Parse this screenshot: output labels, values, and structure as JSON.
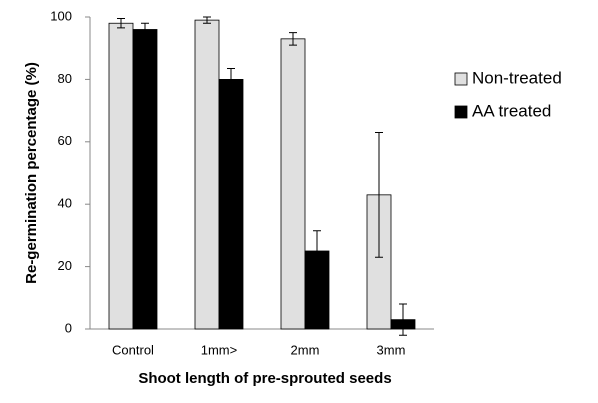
{
  "chart_data": {
    "type": "bar",
    "x_label": "Shoot length of pre-sprouted seeds",
    "y_label": "Re-germination percentage (%)",
    "categories": [
      "Control",
      "1mm>",
      "2mm",
      "3mm"
    ],
    "series": [
      {
        "name": "Non-treated",
        "color": "#e0e0e0",
        "values": [
          98,
          99,
          93,
          43
        ],
        "errors": [
          1.5,
          1,
          2,
          20
        ]
      },
      {
        "name": "AA treated",
        "color": "#000000",
        "values": [
          96,
          80,
          25,
          3
        ],
        "errors": [
          2,
          3.5,
          6.5,
          5
        ]
      }
    ],
    "ylim": [
      0,
      100
    ],
    "yticks": [
      0,
      20,
      40,
      60,
      80,
      100
    ],
    "grid": false,
    "legend": "right"
  }
}
